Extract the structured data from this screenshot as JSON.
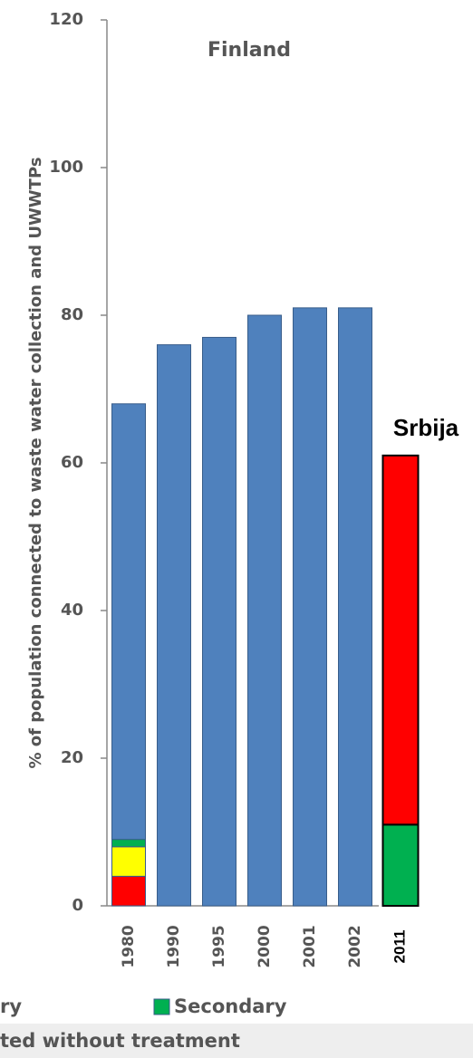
{
  "chart_data": [
    {
      "type": "stacked_bar",
      "title": "Finland",
      "y_label": "% of population connected to waste water collection and UWWTPs",
      "categories": [
        "1980",
        "1990",
        "1995",
        "2000",
        "2001",
        "2002"
      ],
      "series": [
        {
          "name": "ted without treatment",
          "color": "#ff0000",
          "values": [
            4,
            0,
            0,
            0,
            0,
            0
          ]
        },
        {
          "name": "ry",
          "color": "#ffff00",
          "values": [
            4,
            0,
            0,
            0,
            0,
            0
          ]
        },
        {
          "name": "Secondary",
          "color": "#00b050",
          "values": [
            1,
            0,
            0,
            0,
            0,
            0
          ]
        },
        {
          "color": "#4f81bd",
          "values": [
            59,
            76,
            77,
            80,
            81,
            81
          ]
        }
      ],
      "ylim": [
        0,
        120
      ],
      "yticks": [
        0,
        20,
        40,
        60,
        80,
        100,
        120
      ]
    },
    {
      "type": "stacked_bar",
      "title": "Srbija",
      "categories": [
        "2011"
      ],
      "series": [
        {
          "color": "#00b050",
          "values": [
            11
          ]
        },
        {
          "color": "#ff0000",
          "values": [
            50
          ]
        }
      ],
      "ylim": [
        0,
        120
      ]
    }
  ]
}
